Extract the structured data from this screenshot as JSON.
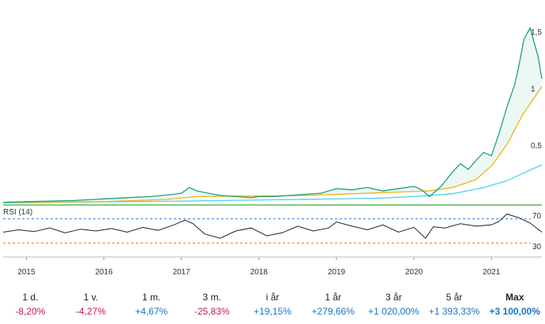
{
  "chart_data": {
    "type": "line",
    "x_tick_labels": [
      "2015",
      "2016",
      "2017",
      "2018",
      "2019",
      "2020",
      "2021"
    ],
    "y_tick_labels": [
      "1,5",
      "1",
      "0,5"
    ],
    "y_ticks": [
      1.5,
      1.0,
      0.5
    ],
    "ylim": [
      0,
      1.6
    ],
    "x_range": [
      2014.7,
      2021.65
    ],
    "price_series": {
      "color": "#1aa37a",
      "x": [
        2014.7,
        2015.0,
        2015.3,
        2015.6,
        2016.0,
        2016.3,
        2016.6,
        2016.9,
        2017.0,
        2017.1,
        2017.2,
        2017.35,
        2017.5,
        2017.7,
        2017.9,
        2018.0,
        2018.2,
        2018.4,
        2018.6,
        2018.8,
        2019.0,
        2019.2,
        2019.4,
        2019.6,
        2019.8,
        2020.0,
        2020.1,
        2020.2,
        2020.25,
        2020.35,
        2020.5,
        2020.6,
        2020.7,
        2020.8,
        2020.9,
        2021.0,
        2021.1,
        2021.2,
        2021.3,
        2021.35,
        2021.42,
        2021.5,
        2021.55,
        2021.6,
        2021.65
      ],
      "y": [
        0.01,
        0.015,
        0.02,
        0.025,
        0.04,
        0.05,
        0.06,
        0.08,
        0.09,
        0.14,
        0.11,
        0.09,
        0.07,
        0.06,
        0.05,
        0.06,
        0.06,
        0.07,
        0.08,
        0.09,
        0.13,
        0.12,
        0.14,
        0.11,
        0.13,
        0.15,
        0.12,
        0.06,
        0.09,
        0.15,
        0.28,
        0.35,
        0.3,
        0.38,
        0.45,
        0.42,
        0.62,
        0.85,
        1.05,
        1.2,
        1.45,
        1.55,
        1.42,
        1.3,
        1.1
      ]
    },
    "ma_slow": {
      "color": "#f2b21c",
      "x": [
        2014.7,
        2016.0,
        2016.8,
        2017.2,
        2017.6,
        2018.0,
        2018.6,
        2019.2,
        2019.8,
        2020.2,
        2020.5,
        2020.8,
        2021.0,
        2021.2,
        2021.4,
        2021.65
      ],
      "y": [
        0.01,
        0.015,
        0.035,
        0.06,
        0.065,
        0.065,
        0.07,
        0.085,
        0.1,
        0.11,
        0.14,
        0.21,
        0.33,
        0.52,
        0.78,
        1.03
      ]
    },
    "ma_long": {
      "color": "#4fd0e8",
      "x": [
        2014.7,
        2017.0,
        2018.5,
        2019.5,
        2020.0,
        2020.5,
        2020.9,
        2021.2,
        2021.45,
        2021.65
      ],
      "y": [
        0.005,
        0.02,
        0.035,
        0.045,
        0.06,
        0.085,
        0.14,
        0.2,
        0.28,
        0.34
      ]
    },
    "baseline": {
      "color": "#3aaa35",
      "y": 0.0
    },
    "rsi": {
      "title": "RSI (14)",
      "levels": [
        70,
        30
      ],
      "upper_color": "#2f7fd6",
      "lower_color": "#e98a1b",
      "line_color": "#222222",
      "x": [
        2014.7,
        2014.9,
        2015.1,
        2015.3,
        2015.5,
        2015.7,
        2015.9,
        2016.1,
        2016.3,
        2016.5,
        2016.7,
        2016.9,
        2017.05,
        2017.15,
        2017.3,
        2017.5,
        2017.7,
        2017.9,
        2018.1,
        2018.3,
        2018.5,
        2018.7,
        2018.9,
        2019.0,
        2019.2,
        2019.4,
        2019.6,
        2019.8,
        2020.0,
        2020.15,
        2020.25,
        2020.4,
        2020.6,
        2020.8,
        2021.0,
        2021.1,
        2021.2,
        2021.35,
        2021.5,
        2021.65
      ],
      "y": [
        48,
        52,
        49,
        55,
        47,
        53,
        50,
        54,
        48,
        56,
        51,
        60,
        68,
        62,
        45,
        38,
        50,
        55,
        42,
        47,
        58,
        50,
        55,
        65,
        58,
        52,
        60,
        48,
        56,
        38,
        57,
        55,
        62,
        58,
        60,
        66,
        78,
        72,
        63,
        48
      ]
    }
  },
  "rsi_labels": {
    "title": "RSI (14)",
    "upper": "70",
    "lower": "30"
  },
  "performance": [
    {
      "label": "1 d.",
      "value": "-8,20%",
      "sign": "neg"
    },
    {
      "label": "1 v.",
      "value": "-4,27%",
      "sign": "neg"
    },
    {
      "label": "1 m.",
      "value": "+4,67%",
      "sign": "pos"
    },
    {
      "label": "3 m.",
      "value": "-25,83%",
      "sign": "neg"
    },
    {
      "label": "i år",
      "value": "+19,15%",
      "sign": "pos"
    },
    {
      "label": "1 år",
      "value": "+279,66%",
      "sign": "pos"
    },
    {
      "label": "3 år",
      "value": "+1 020,00%",
      "sign": "pos"
    },
    {
      "label": "5 år",
      "value": "+1 393,33%",
      "sign": "pos"
    },
    {
      "label": "Max",
      "value": "+3 100,00%",
      "sign": "pos",
      "active": true
    }
  ]
}
